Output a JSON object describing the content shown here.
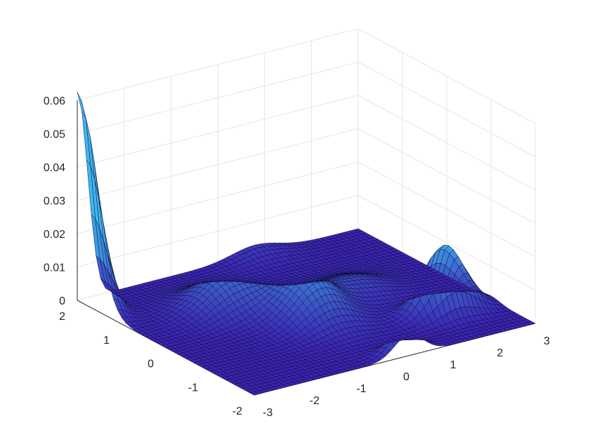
{
  "chart_data": {
    "type": "surface",
    "title": "",
    "xlabel": "",
    "ylabel": "",
    "zlabel": "",
    "xlim": [
      -3,
      3
    ],
    "ylim": [
      -2,
      2
    ],
    "zlim": [
      0,
      0.06
    ],
    "x_ticks": [
      "-3",
      "-2",
      "-1",
      "0",
      "1",
      "2",
      "3"
    ],
    "y_ticks": [
      "-2",
      "-1",
      "0",
      "1",
      "2"
    ],
    "z_ticks": [
      "0",
      "0.01",
      "0.02",
      "0.03",
      "0.04",
      "0.05",
      "0.06"
    ],
    "grid": true,
    "colormap_low": "#3b24b4",
    "colormap_high": "#3fb5f0",
    "peaks": [
      {
        "x": -3.0,
        "y": 2.0,
        "sigma_x": 0.22,
        "sigma_y": 0.38,
        "height": 0.0625
      },
      {
        "x": -1.1,
        "y": 0.7,
        "sigma_x": 0.55,
        "sigma_y": 0.4,
        "height": 0.0095
      },
      {
        "x": -0.1,
        "y": -0.2,
        "sigma_x": 0.5,
        "sigma_y": 0.45,
        "height": 0.0125
      },
      {
        "x": 1.2,
        "y": 0.2,
        "sigma_x": 0.55,
        "sigma_y": 0.35,
        "height": 0.0045
      },
      {
        "x": 0.8,
        "y": 2.0,
        "sigma_x": 0.5,
        "sigma_y": 0.28,
        "height": 0.003
      },
      {
        "x": 2.0,
        "y": -1.0,
        "sigma_x": 0.42,
        "sigma_y": 0.2,
        "height": 0.02
      },
      {
        "x": 0.3,
        "y": -1.9,
        "sigma_x": 0.3,
        "sigma_y": 0.15,
        "height": 0.008
      }
    ]
  }
}
